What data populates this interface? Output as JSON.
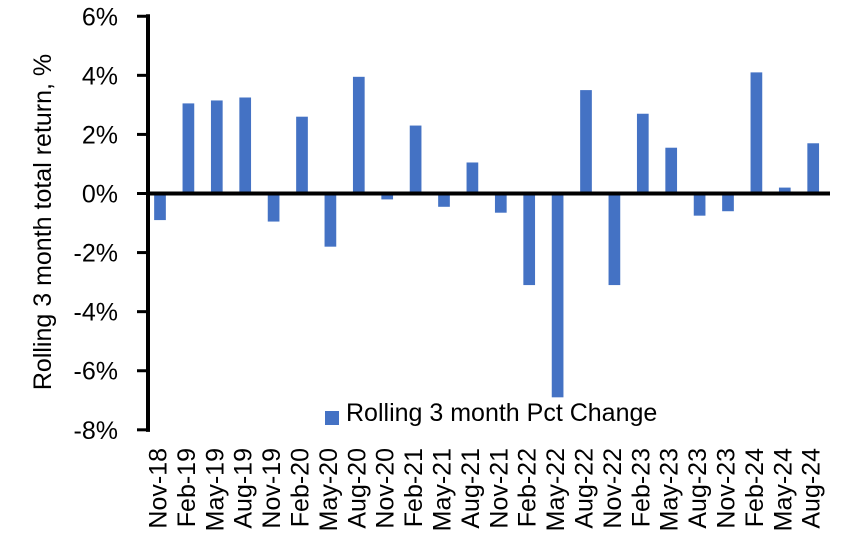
{
  "chart_data": {
    "type": "bar",
    "title": "",
    "xlabel": "",
    "ylabel": "Rolling 3 month total return, %",
    "ylim": [
      -8,
      6
    ],
    "ytick_values": [
      6,
      4,
      2,
      0,
      -2,
      -4,
      -6,
      -8
    ],
    "ytick_labels": [
      "6%",
      "4%",
      "2%",
      "0%",
      "-2%",
      "-4%",
      "-6%",
      "-8%"
    ],
    "grid": false,
    "zero_line": true,
    "axis_color": "#000000",
    "text_color": "#000000",
    "background_color": "#ffffff",
    "legend_position": "bottom-center",
    "categories": [
      "Nov-18",
      "Feb-19",
      "May-19",
      "Aug-19",
      "Nov-19",
      "Feb-20",
      "May-20",
      "Aug-20",
      "Nov-20",
      "Feb-21",
      "May-21",
      "Aug-21",
      "Nov-21",
      "Feb-22",
      "May-22",
      "Aug-22",
      "Nov-22",
      "Feb-23",
      "May-23",
      "Aug-23",
      "Nov-23",
      "Feb-24",
      "May-24",
      "Aug-24"
    ],
    "series": [
      {
        "name": "Rolling 3 month Pct Change",
        "color": "#4472C4",
        "values": [
          -0.9,
          3.05,
          3.15,
          3.25,
          -0.95,
          2.6,
          -1.8,
          3.95,
          -0.2,
          2.3,
          -0.45,
          1.05,
          -0.65,
          -3.1,
          -6.9,
          3.5,
          -3.1,
          2.7,
          1.55,
          -0.75,
          -0.6,
          4.1,
          0.2,
          1.7
        ]
      }
    ]
  }
}
